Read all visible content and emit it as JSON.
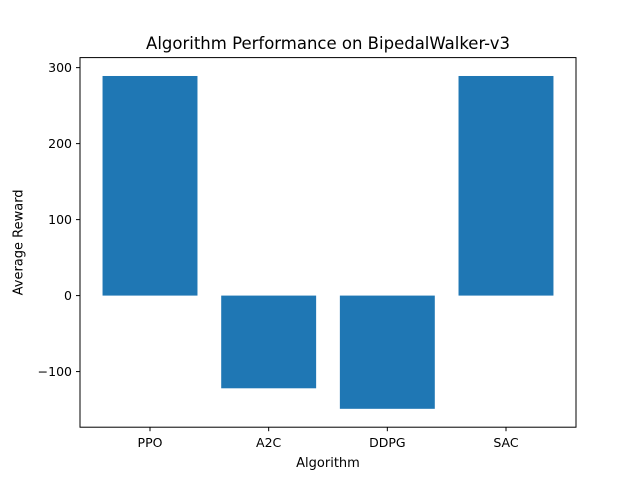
{
  "chart_data": {
    "type": "bar",
    "title": "Algorithm Performance on BipedalWalker-v3",
    "xlabel": "Algorithm",
    "ylabel": "Average Reward",
    "categories": [
      "PPO",
      "A2C",
      "DDPG",
      "SAC"
    ],
    "values": [
      289,
      -122,
      -149,
      289
    ],
    "ylim": [
      -173.2,
      313.2
    ],
    "yticks": [
      -100,
      0,
      100,
      200,
      300
    ],
    "ytick_labels": [
      "−100",
      "0",
      "100",
      "200",
      "300"
    ],
    "bar_color": "#1f77b4",
    "grid": false,
    "legend": "none"
  }
}
